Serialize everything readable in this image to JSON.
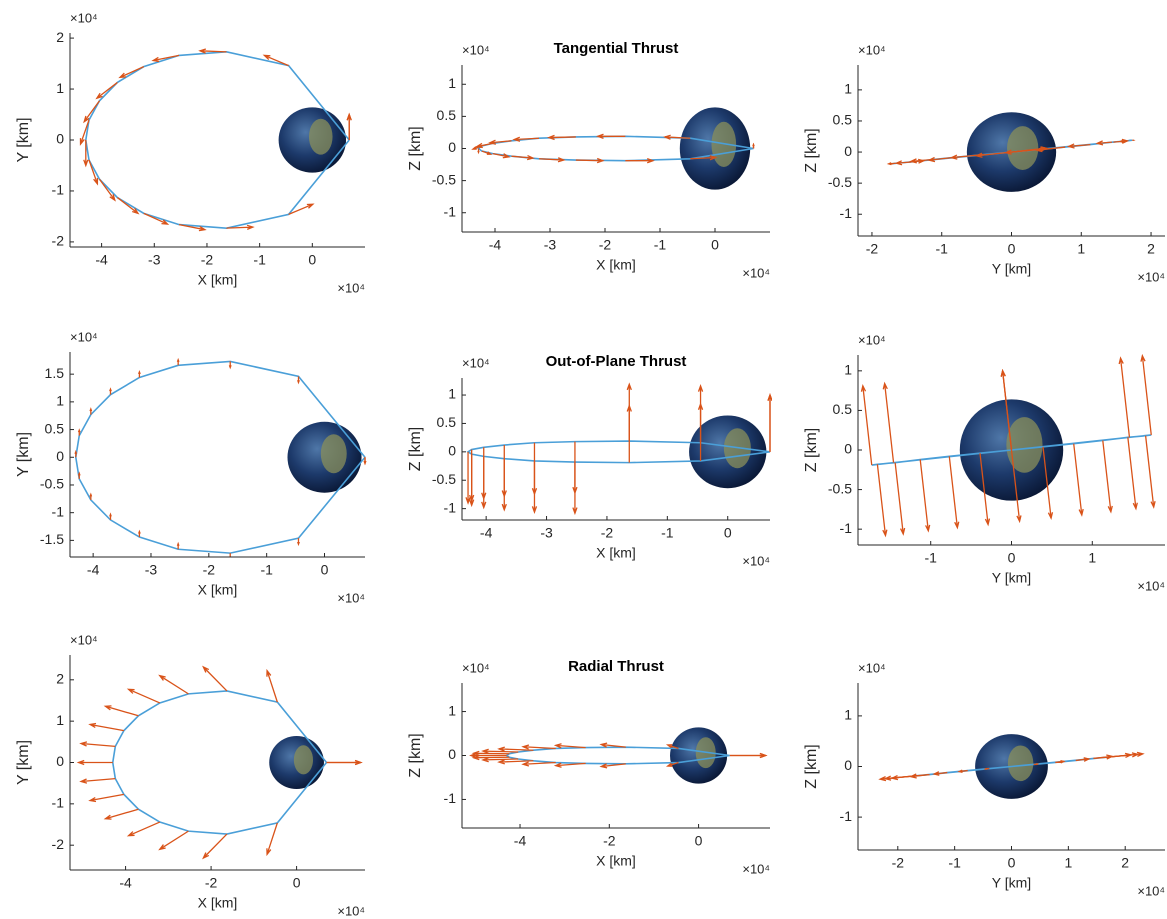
{
  "chart_data": [
    {
      "type": "quiver",
      "xlabel": "X [km]",
      "ylabel": "Y [km]",
      "x_multiplier": "×10⁴",
      "y_multiplier": "×10⁴",
      "x": [
        0.7,
        -0.45,
        -1.63,
        -2.53,
        -3.2,
        -3.7,
        -4.04,
        -4.24,
        -4.3,
        -4.24,
        -4.04,
        -3.7,
        -3.2,
        -2.53,
        -1.63,
        -0.45,
        0.7
      ],
      "y": [
        0,
        1.46,
        1.73,
        1.66,
        1.44,
        1.13,
        0.77,
        0.39,
        0,
        -0.39,
        -0.77,
        -1.13,
        -1.44,
        -1.66,
        -1.73,
        -1.46,
        0
      ],
      "u": [
        0,
        -0.46,
        -0.5,
        -0.49,
        -0.45,
        -0.39,
        -0.29,
        -0.16,
        0,
        0.16,
        0.29,
        0.39,
        0.45,
        0.49,
        0.5,
        0.46,
        0
      ],
      "v": [
        0.5,
        0.2,
        0.02,
        -0.1,
        -0.21,
        -0.31,
        -0.41,
        -0.47,
        -0.5,
        -0.47,
        -0.41,
        -0.31,
        -0.21,
        -0.1,
        0.02,
        0.2,
        0.5
      ],
      "xlim": [
        -4.6,
        1.0
      ],
      "ylim": [
        -2.1,
        2.1
      ],
      "xticks": [
        -4,
        -3,
        -2,
        -1,
        0
      ],
      "yticks": [
        -2,
        -1,
        0,
        1,
        2
      ],
      "line_color": "#4a9fd8",
      "arrow_color": "#d95319",
      "earth_radius": 0.64
    },
    {
      "type": "quiver",
      "title": "Tangential Thrust",
      "xlabel": "X [km]",
      "ylabel": "Z [km]",
      "x_multiplier": "×10⁴",
      "y_multiplier": "×10⁴",
      "x": [
        0.7,
        -0.45,
        -1.63,
        -2.53,
        -3.2,
        -3.7,
        -4.04,
        -4.24,
        -4.3,
        -4.24,
        -4.04,
        -3.7,
        -3.2,
        -2.53,
        -1.63,
        -0.45,
        0.7
      ],
      "y": [
        0,
        0.16,
        0.19,
        0.18,
        0.16,
        0.12,
        0.08,
        0.04,
        0,
        -0.04,
        -0.08,
        -0.12,
        -0.16,
        -0.18,
        -0.19,
        -0.16,
        0
      ],
      "u": [
        0,
        -0.46,
        -0.5,
        -0.49,
        -0.45,
        -0.39,
        -0.29,
        -0.16,
        0,
        0.16,
        0.29,
        0.39,
        0.45,
        0.49,
        0.5,
        0.46,
        0
      ],
      "v": [
        0.06,
        0.02,
        0,
        -0.01,
        -0.02,
        -0.03,
        -0.05,
        -0.05,
        -0.06,
        -0.05,
        -0.05,
        -0.03,
        -0.02,
        -0.01,
        0,
        0.02,
        0.06
      ],
      "xlim": [
        -4.6,
        1.0
      ],
      "ylim": [
        -1.3,
        1.3
      ],
      "xticks": [
        -4,
        -3,
        -2,
        -1,
        0
      ],
      "yticks": [
        -1,
        -0.5,
        0,
        0.5,
        1
      ],
      "line_color": "#4a9fd8",
      "arrow_color": "#d95319",
      "earth_radius": 0.64
    },
    {
      "type": "quiver",
      "xlabel": "Y [km]",
      "ylabel": "Z [km]",
      "x_multiplier": "×10⁴",
      "y_multiplier": "×10⁴",
      "x": [
        0,
        1.46,
        1.73,
        1.66,
        1.44,
        1.13,
        0.77,
        0.39,
        0,
        -0.39,
        -0.77,
        -1.13,
        -1.44,
        -1.66,
        -1.73,
        -1.46,
        0
      ],
      "y": [
        0,
        0.16,
        0.19,
        0.18,
        0.16,
        0.12,
        0.08,
        0.04,
        0,
        -0.04,
        -0.08,
        -0.12,
        -0.16,
        -0.18,
        -0.19,
        -0.16,
        0
      ],
      "u": [
        0.5,
        0.2,
        0.02,
        -0.1,
        -0.21,
        -0.31,
        -0.41,
        -0.47,
        -0.5,
        -0.47,
        -0.41,
        -0.31,
        -0.21,
        -0.1,
        0.02,
        0.2,
        0.5
      ],
      "v": [
        0.06,
        0.02,
        0,
        -0.01,
        -0.02,
        -0.03,
        -0.05,
        -0.05,
        -0.06,
        -0.05,
        -0.05,
        -0.03,
        -0.02,
        -0.01,
        0,
        0.02,
        0.06
      ],
      "xlim": [
        -2.2,
        2.2
      ],
      "ylim": [
        -1.35,
        1.4
      ],
      "xticks": [
        -2,
        -1,
        0,
        1,
        2
      ],
      "yticks": [
        -1,
        -0.5,
        0,
        0.5,
        1
      ],
      "line_color": "#4a9fd8",
      "arrow_color": "#d95319",
      "earth_radius": 0.64
    },
    {
      "type": "quiver",
      "xlabel": "X [km]",
      "ylabel": "Y [km]",
      "x_multiplier": "×10⁴",
      "y_multiplier": "×10⁴",
      "x": [
        0.7,
        -0.45,
        -1.63,
        -2.53,
        -3.2,
        -3.7,
        -4.04,
        -4.24,
        -4.3,
        -4.24,
        -4.04,
        -3.7,
        -3.2,
        -2.53,
        -1.63,
        -0.45,
        0.7
      ],
      "y": [
        0,
        1.46,
        1.73,
        1.66,
        1.44,
        1.13,
        0.77,
        0.39,
        0,
        -0.39,
        -0.77,
        -1.13,
        -1.44,
        -1.66,
        -1.73,
        -1.46,
        0
      ],
      "u": [
        0,
        0,
        0,
        0,
        0,
        0,
        0,
        0,
        0,
        0,
        0,
        0,
        0,
        0,
        0,
        0,
        0
      ],
      "v": [
        -0.11,
        -0.11,
        -0.11,
        0.1,
        0.1,
        0.1,
        0.1,
        0.1,
        0.1,
        0.1,
        0.1,
        0.1,
        0.1,
        0.1,
        -0.11,
        -0.11,
        -0.11
      ],
      "xlim": [
        -4.4,
        0.7
      ],
      "ylim": [
        -1.8,
        1.9
      ],
      "xticks": [
        -4,
        -3,
        -2,
        -1,
        0
      ],
      "yticks": [
        -1.5,
        -1,
        -0.5,
        0,
        0.5,
        1,
        1.5
      ],
      "line_color": "#4a9fd8",
      "arrow_color": "#d95319",
      "earth_radius": 0.64
    },
    {
      "type": "quiver",
      "title": "Out-of-Plane Thrust",
      "xlabel": "X [km]",
      "ylabel": "Z [km]",
      "x_multiplier": "×10⁴",
      "y_multiplier": "×10⁴",
      "x": [
        0.7,
        -0.45,
        -1.63,
        -2.53,
        -3.2,
        -3.7,
        -4.04,
        -4.24,
        -4.3,
        -4.24,
        -4.04,
        -3.7,
        -3.2,
        -2.53,
        -1.63,
        -0.45,
        0.7
      ],
      "y": [
        0,
        0.16,
        0.19,
        0.18,
        0.16,
        0.12,
        0.08,
        0.04,
        0,
        -0.04,
        -0.08,
        -0.12,
        -0.16,
        -0.18,
        -0.19,
        -0.16,
        0
      ],
      "u": [
        0,
        0,
        0,
        0,
        0,
        0,
        0,
        0,
        0,
        0,
        0,
        0,
        0,
        0,
        0,
        0,
        0
      ],
      "v": [
        1,
        1,
        1,
        -0.9,
        -0.9,
        -0.9,
        -0.9,
        -0.9,
        -0.9,
        -0.9,
        -0.9,
        -0.9,
        -0.9,
        -0.9,
        1,
        1,
        1
      ],
      "xlim": [
        -4.4,
        0.7
      ],
      "ylim": [
        -1.2,
        1.3
      ],
      "xticks": [
        -4,
        -3,
        -2,
        -1,
        0
      ],
      "yticks": [
        -1,
        -0.5,
        0,
        0.5,
        1
      ],
      "line_color": "#4a9fd8",
      "arrow_color": "#d95319",
      "earth_radius": 0.64
    },
    {
      "type": "quiver",
      "xlabel": "Y [km]",
      "ylabel": "Z [km]",
      "x_multiplier": "×10⁴",
      "y_multiplier": "×10⁴",
      "x": [
        0,
        1.46,
        1.73,
        1.66,
        1.44,
        1.13,
        0.77,
        0.39,
        0,
        -0.39,
        -0.77,
        -1.13,
        -1.44,
        -1.66,
        -1.73,
        -1.46,
        0
      ],
      "y": [
        0,
        0.16,
        0.19,
        0.18,
        0.16,
        0.12,
        0.08,
        0.04,
        0,
        -0.04,
        -0.08,
        -0.12,
        -0.16,
        -0.18,
        -0.19,
        -0.16,
        0
      ],
      "u": [
        -0.11,
        -0.11,
        -0.11,
        0.1,
        0.1,
        0.1,
        0.1,
        0.1,
        0.1,
        0.1,
        0.1,
        0.1,
        0.1,
        0.1,
        -0.11,
        -0.11,
        -0.11
      ],
      "v": [
        1,
        1,
        1,
        -0.9,
        -0.9,
        -0.9,
        -0.9,
        -0.9,
        -0.9,
        -0.9,
        -0.9,
        -0.9,
        -0.9,
        -0.9,
        1,
        1,
        1
      ],
      "xlim": [
        -1.9,
        1.9
      ],
      "ylim": [
        -1.2,
        1.2
      ],
      "xticks": [
        -1,
        0,
        1
      ],
      "yticks": [
        -1,
        -0.5,
        0,
        0.5,
        1
      ],
      "line_color": "#4a9fd8",
      "arrow_color": "#d95319",
      "earth_radius": 0.64
    },
    {
      "type": "quiver",
      "xlabel": "X [km]",
      "ylabel": "Y [km]",
      "x_multiplier": "×10⁴",
      "y_multiplier": "×10⁴",
      "x": [
        0.7,
        -0.45,
        -1.63,
        -2.53,
        -3.2,
        -3.7,
        -4.04,
        -4.24,
        -4.3,
        -4.24,
        -4.04,
        -3.7,
        -3.2,
        -2.53,
        -1.63,
        -0.45,
        0.7
      ],
      "y": [
        0,
        1.46,
        1.73,
        1.66,
        1.44,
        1.13,
        0.77,
        0.39,
        0,
        -0.39,
        -0.77,
        -1.13,
        -1.44,
        -1.66,
        -1.73,
        -1.46,
        0
      ],
      "u": [
        0.8,
        -0.24,
        -0.55,
        -0.67,
        -0.73,
        -0.77,
        -0.79,
        -0.8,
        -0.8,
        -0.8,
        -0.79,
        -0.77,
        -0.73,
        -0.67,
        -0.55,
        -0.24,
        0.8
      ],
      "v": [
        0,
        0.76,
        0.58,
        0.44,
        0.33,
        0.23,
        0.15,
        0.07,
        0,
        -0.07,
        -0.15,
        -0.23,
        -0.33,
        -0.44,
        -0.58,
        -0.76,
        0
      ],
      "xlim": [
        -5.3,
        1.6
      ],
      "ylim": [
        -2.6,
        2.6
      ],
      "xticks": [
        -4,
        -2,
        0
      ],
      "yticks": [
        -2,
        -1,
        0,
        1,
        2
      ],
      "line_color": "#4a9fd8",
      "arrow_color": "#d95319",
      "earth_radius": 0.64
    },
    {
      "type": "quiver",
      "title": "Radial Thrust",
      "xlabel": "X [km]",
      "ylabel": "Z [km]",
      "x_multiplier": "×10⁴",
      "y_multiplier": "×10⁴",
      "x": [
        0.7,
        -0.45,
        -1.63,
        -2.53,
        -3.2,
        -3.7,
        -4.04,
        -4.24,
        -4.3,
        -4.24,
        -4.04,
        -3.7,
        -3.2,
        -2.53,
        -1.63,
        -0.45,
        0.7
      ],
      "y": [
        0,
        0.16,
        0.19,
        0.18,
        0.16,
        0.12,
        0.08,
        0.04,
        0,
        -0.04,
        -0.08,
        -0.12,
        -0.16,
        -0.18,
        -0.19,
        -0.16,
        0
      ],
      "u": [
        0.8,
        -0.24,
        -0.55,
        -0.67,
        -0.73,
        -0.77,
        -0.79,
        -0.8,
        -0.8,
        -0.8,
        -0.79,
        -0.77,
        -0.73,
        -0.67,
        -0.55,
        -0.24,
        0.8
      ],
      "v": [
        0,
        0.08,
        0.06,
        0.05,
        0.04,
        0.03,
        0.02,
        0.01,
        0,
        -0.01,
        -0.02,
        -0.03,
        -0.04,
        -0.05,
        -0.06,
        -0.08,
        0
      ],
      "xlim": [
        -5.3,
        1.6
      ],
      "ylim": [
        -1.65,
        1.65
      ],
      "xticks": [
        -4,
        -2,
        0
      ],
      "yticks": [
        -1,
        0,
        1
      ],
      "line_color": "#4a9fd8",
      "arrow_color": "#d95319",
      "earth_radius": 0.64
    },
    {
      "type": "quiver",
      "xlabel": "Y [km]",
      "ylabel": "Z [km]",
      "x_multiplier": "×10⁴",
      "y_multiplier": "×10⁴",
      "x": [
        0,
        1.46,
        1.73,
        1.66,
        1.44,
        1.13,
        0.77,
        0.39,
        0,
        -0.39,
        -0.77,
        -1.13,
        -1.44,
        -1.66,
        -1.73,
        -1.46,
        0
      ],
      "y": [
        0,
        0.16,
        0.19,
        0.18,
        0.16,
        0.12,
        0.08,
        0.04,
        0,
        -0.04,
        -0.08,
        -0.12,
        -0.16,
        -0.18,
        -0.19,
        -0.16,
        0
      ],
      "u": [
        0,
        0.76,
        0.58,
        0.44,
        0.33,
        0.23,
        0.15,
        0.07,
        0,
        -0.07,
        -0.15,
        -0.23,
        -0.33,
        -0.44,
        -0.58,
        -0.76,
        0
      ],
      "v": [
        0,
        0.08,
        0.06,
        0.05,
        0.04,
        0.03,
        0.02,
        0.01,
        0,
        -0.01,
        -0.02,
        -0.03,
        -0.04,
        -0.05,
        -0.06,
        -0.08,
        0
      ],
      "xlim": [
        -2.7,
        2.7
      ],
      "ylim": [
        -1.65,
        1.65
      ],
      "xticks": [
        -2,
        -1,
        0,
        1,
        2
      ],
      "yticks": [
        -1,
        0,
        1
      ],
      "line_color": "#4a9fd8",
      "arrow_color": "#d95319",
      "earth_radius": 0.64
    }
  ]
}
